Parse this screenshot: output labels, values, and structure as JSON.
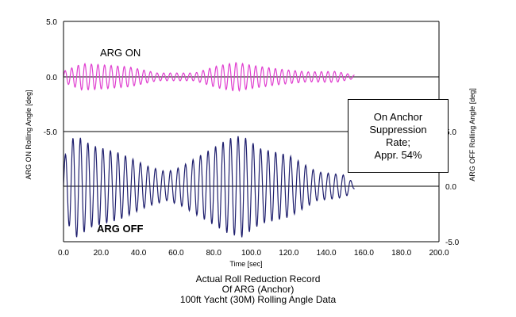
{
  "chart_data": {
    "type": "line",
    "xlabel": "Time [sec]",
    "xlim": [
      0,
      200
    ],
    "x_ticks": [
      "0.0",
      "20.0",
      "40.0",
      "60.0",
      "80.0",
      "100.0",
      "120.0",
      "140.0",
      "160.0",
      "180.0",
      "200.0"
    ],
    "left_axis": {
      "label": "ARG ON Rolling Angle [deg]",
      "ticks": [
        "5.0",
        "0.0",
        "-5.0"
      ]
    },
    "right_axis": {
      "label": "ARG OFF Rolling Angle [deg]",
      "ticks": [
        "5.0",
        "0.0",
        "-5.0"
      ]
    },
    "series": [
      {
        "name": "ARG ON",
        "color": "#e040d0",
        "time_range": [
          0,
          155
        ],
        "baseline_deg": 0.0,
        "envelope": [
          [
            0,
            0.5
          ],
          [
            10,
            1.2
          ],
          [
            20,
            1.1
          ],
          [
            35,
            0.9
          ],
          [
            50,
            0.35
          ],
          [
            70,
            0.35
          ],
          [
            82,
            1.0
          ],
          [
            92,
            1.3
          ],
          [
            102,
            1.0
          ],
          [
            115,
            0.7
          ],
          [
            130,
            0.45
          ],
          [
            145,
            0.5
          ],
          [
            155,
            0.15
          ]
        ]
      },
      {
        "name": "ARG OFF",
        "color": "#1f1f6e",
        "time_range": [
          0,
          155
        ],
        "baseline_deg": 0.0,
        "envelope": [
          [
            0,
            2.5
          ],
          [
            6,
            4.7
          ],
          [
            15,
            3.7
          ],
          [
            30,
            3.0
          ],
          [
            45,
            1.8
          ],
          [
            55,
            1.3
          ],
          [
            62,
            1.7
          ],
          [
            75,
            3.0
          ],
          [
            88,
            4.3
          ],
          [
            95,
            4.6
          ],
          [
            105,
            3.4
          ],
          [
            120,
            2.8
          ],
          [
            135,
            1.3
          ],
          [
            150,
            1.0
          ],
          [
            155,
            0.2
          ]
        ]
      }
    ],
    "annotation": {
      "lines": [
        "On Anchor",
        "Suppression",
        "Rate;",
        "Appr. 54%"
      ]
    },
    "title_lines": [
      "Actual Roll Reduction Record",
      "Of ARG (Anchor)",
      "100ft Yacht (30M) Rolling Angle Data"
    ],
    "grid": "horizontal",
    "legend": "inline labels"
  }
}
